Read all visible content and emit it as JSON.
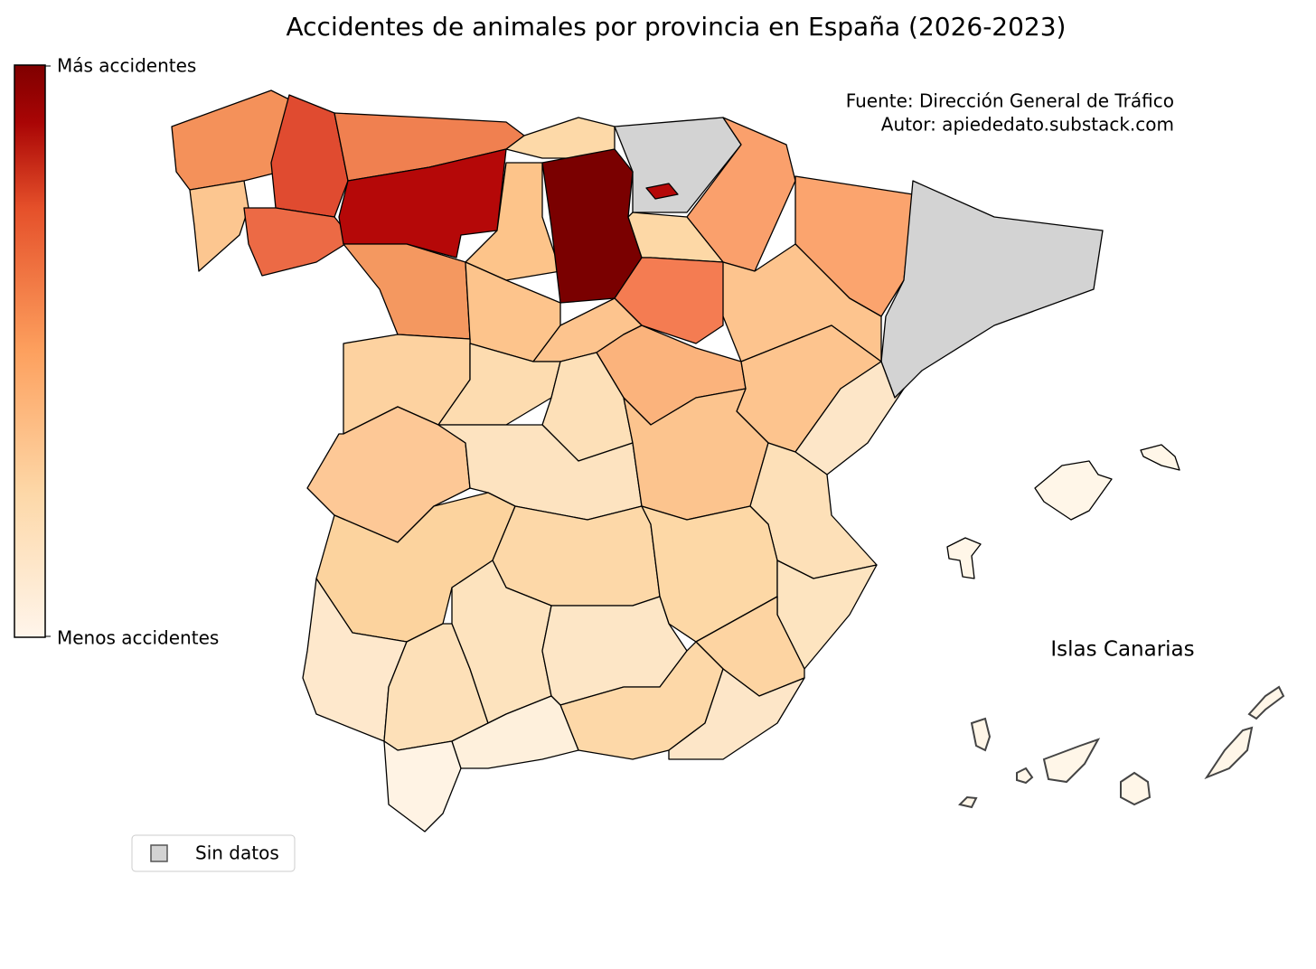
{
  "title": "Accidentes de animales por provincia en España (2026-2023)",
  "colorbar": {
    "top_label": "Más accidentes",
    "bottom_label": "Menos accidentes"
  },
  "source": "Fuente: Dirección General de Tráfico",
  "author": "Autor: apiededato.substack.com",
  "legend": {
    "no_data": "Sin datos"
  },
  "inset_label": "Islas Canarias"
}
